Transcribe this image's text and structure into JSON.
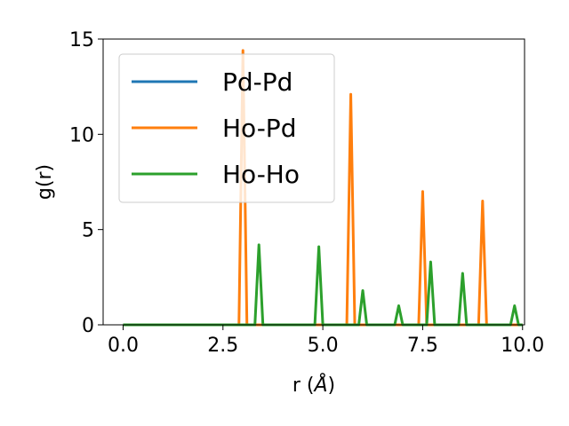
{
  "chart_data": {
    "type": "line",
    "title": "",
    "xlabel_main": "r (",
    "xlabel_unit": "Å",
    "xlabel_close": ")",
    "ylabel": "g(r)",
    "xlim": [
      -0.5,
      10.05
    ],
    "ylim": [
      0,
      15
    ],
    "xticks": [
      0.0,
      2.5,
      5.0,
      7.5,
      10.0
    ],
    "xtick_labels": [
      "0.0",
      "2.5",
      "5.0",
      "7.5",
      "10.0"
    ],
    "yticks": [
      0,
      5,
      10,
      15
    ],
    "ytick_labels": [
      "0",
      "5",
      "10",
      "15"
    ],
    "grid": false,
    "legend_position": "upper-left",
    "series": [
      {
        "name": "Pd-Pd",
        "color": "#1f77b4",
        "x": [
          0.0,
          10.0
        ],
        "y": [
          0,
          0
        ]
      },
      {
        "name": "Ho-Pd",
        "color": "#ff7f0e",
        "x": [
          0.0,
          2.9,
          3.0,
          3.1,
          5.6,
          5.7,
          5.8,
          7.4,
          7.5,
          7.6,
          8.9,
          9.0,
          9.1,
          10.0
        ],
        "y": [
          0,
          0,
          14.4,
          0,
          0,
          12.1,
          0,
          0,
          7.0,
          0,
          0,
          6.5,
          0,
          0
        ]
      },
      {
        "name": "Ho-Ho",
        "color": "#2ca02c",
        "x": [
          0.0,
          3.3,
          3.4,
          3.5,
          4.8,
          4.9,
          5.0,
          5.9,
          6.0,
          6.1,
          6.8,
          6.9,
          7.0,
          7.6,
          7.7,
          7.8,
          8.4,
          8.5,
          8.6,
          9.7,
          9.8,
          9.9,
          10.0
        ],
        "y": [
          0,
          0,
          4.2,
          0,
          0,
          4.1,
          0,
          0,
          1.8,
          0,
          0,
          1.0,
          0,
          0,
          3.3,
          0,
          0,
          2.7,
          0,
          0,
          1.0,
          0,
          0
        ]
      }
    ]
  }
}
